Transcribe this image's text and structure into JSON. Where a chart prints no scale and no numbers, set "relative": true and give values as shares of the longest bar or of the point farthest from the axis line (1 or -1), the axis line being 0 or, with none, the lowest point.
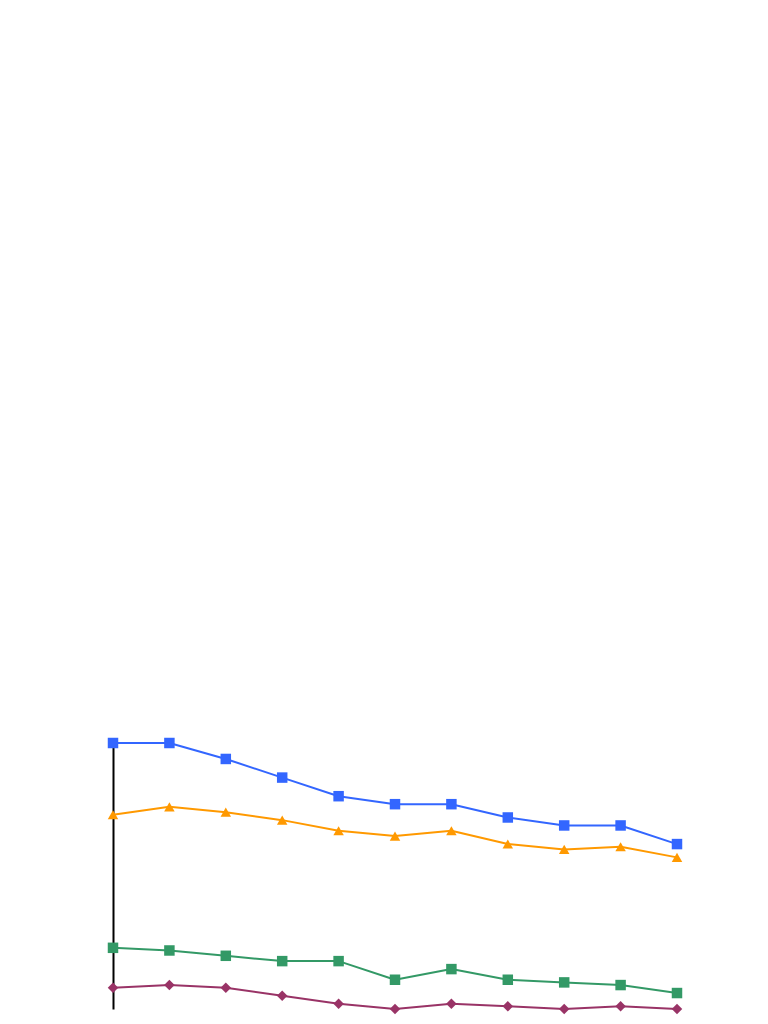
{
  "chart_data": {
    "type": "line",
    "relative": true,
    "categories": [
      null,
      null,
      null,
      null,
      null,
      null,
      null,
      null,
      null,
      null,
      null
    ],
    "series": [
      {
        "color": "#3366ff",
        "marker": "square",
        "values": [
          1,
          1,
          0.94,
          0.87,
          0.8,
          0.77,
          0.77,
          0.72,
          0.69,
          0.69,
          0.62
        ]
      },
      {
        "color": "#ff9900",
        "marker": "triangle",
        "values": [
          0.73,
          0.76,
          0.74,
          0.71,
          0.67,
          0.65,
          0.67,
          0.62,
          0.6,
          0.61,
          0.57
        ]
      },
      {
        "color": "#339966",
        "marker": "square",
        "values": [
          0.23,
          0.22,
          0.2,
          0.18,
          0.18,
          0.11,
          0.15,
          0.11,
          0.1,
          0.09,
          0.06
        ]
      },
      {
        "color": "#993366",
        "marker": "diamond",
        "values": [
          0.08,
          0.09,
          0.08,
          0.05,
          0.02,
          0,
          0.02,
          0.01,
          0,
          0.01,
          0
        ]
      }
    ]
  }
}
